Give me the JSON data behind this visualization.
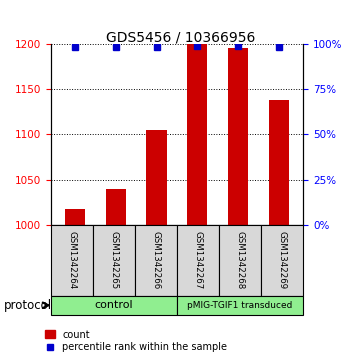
{
  "title": "GDS5456 / 10366956",
  "samples": [
    "GSM1342264",
    "GSM1342265",
    "GSM1342266",
    "GSM1342267",
    "GSM1342268",
    "GSM1342269"
  ],
  "counts": [
    1018,
    1040,
    1105,
    1200,
    1195,
    1138
  ],
  "percentiles": [
    98,
    98,
    98,
    98.5,
    98.5,
    98
  ],
  "ylim_left": [
    1000,
    1200
  ],
  "ylim_right": [
    0,
    100
  ],
  "yticks_left": [
    1000,
    1050,
    1100,
    1150,
    1200
  ],
  "yticks_right": [
    0,
    25,
    50,
    75,
    100
  ],
  "bar_color": "#CC0000",
  "dot_color": "#0000CC",
  "bar_width": 0.5,
  "label_bg": "#d8d8d8",
  "ctrl_color": "#90EE90",
  "pmig_color": "#90EE90",
  "protocol_label": "protocol",
  "ctrl_label": "control",
  "pmig_label": "pMIG-TGIF1 transduced",
  "legend_count_label": "count",
  "legend_percentile_label": "percentile rank within the sample"
}
